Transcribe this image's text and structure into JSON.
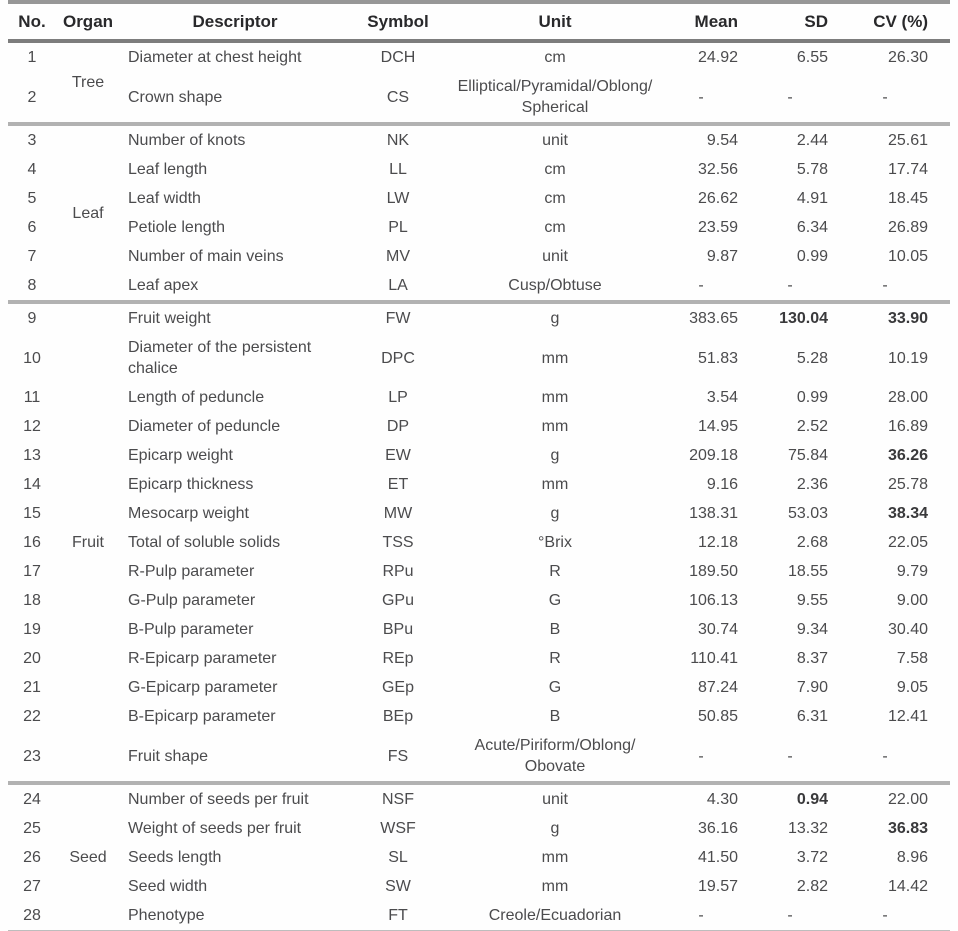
{
  "colors": {
    "rule_top": "#979797",
    "rule_header": "#7d7d7d",
    "rule_group": "#b2b2b2",
    "rule_bottom": "#bdbdbd",
    "text_header": "#29292b",
    "text_body": "#4b4b4d"
  },
  "table": {
    "columns": [
      {
        "key": "no",
        "label": "No."
      },
      {
        "key": "organ",
        "label": "Organ"
      },
      {
        "key": "descriptor",
        "label": "Descriptor"
      },
      {
        "key": "symbol",
        "label": "Symbol"
      },
      {
        "key": "unit",
        "label": "Unit"
      },
      {
        "key": "mean",
        "label": "Mean"
      },
      {
        "key": "sd",
        "label": "SD"
      },
      {
        "key": "cv",
        "label": "CV (%)"
      }
    ],
    "groups": [
      {
        "organ": "Tree",
        "rows": [
          {
            "no": "1",
            "descriptor": "Diameter at chest height",
            "symbol": "DCH",
            "unit": "cm",
            "mean": "24.92",
            "sd": "6.55",
            "cv": "26.30",
            "bold": []
          },
          {
            "no": "2",
            "descriptor": "Crown shape",
            "symbol": "CS",
            "unit": "Elliptical/Pyramidal/Oblong/\nSpherical",
            "mean": "-",
            "sd": "-",
            "cv": "-",
            "bold": []
          }
        ]
      },
      {
        "organ": "Leaf",
        "rows": [
          {
            "no": "3",
            "descriptor": "Number of knots",
            "symbol": "NK",
            "unit": "unit",
            "mean": "9.54",
            "sd": "2.44",
            "cv": "25.61",
            "bold": []
          },
          {
            "no": "4",
            "descriptor": "Leaf length",
            "symbol": "LL",
            "unit": "cm",
            "mean": "32.56",
            "sd": "5.78",
            "cv": "17.74",
            "bold": []
          },
          {
            "no": "5",
            "descriptor": "Leaf width",
            "symbol": "LW",
            "unit": "cm",
            "mean": "26.62",
            "sd": "4.91",
            "cv": "18.45",
            "bold": []
          },
          {
            "no": "6",
            "descriptor": "Petiole length",
            "symbol": "PL",
            "unit": "cm",
            "mean": "23.59",
            "sd": "6.34",
            "cv": "26.89",
            "bold": []
          },
          {
            "no": "7",
            "descriptor": "Number of main veins",
            "symbol": "MV",
            "unit": "unit",
            "mean": "9.87",
            "sd": "0.99",
            "cv": "10.05",
            "bold": []
          },
          {
            "no": "8",
            "descriptor": "Leaf apex",
            "symbol": "LA",
            "unit": "Cusp/Obtuse",
            "mean": "-",
            "sd": "-",
            "cv": "-",
            "bold": []
          }
        ]
      },
      {
        "organ": "Fruit",
        "rows": [
          {
            "no": "9",
            "descriptor": "Fruit weight",
            "symbol": "FW",
            "unit": "g",
            "mean": "383.65",
            "sd": "130.04",
            "cv": "33.90",
            "bold": [
              "sd",
              "cv"
            ]
          },
          {
            "no": "10",
            "descriptor": "Diameter of the persistent\nchalice",
            "symbol": "DPC",
            "unit": "mm",
            "mean": "51.83",
            "sd": "5.28",
            "cv": "10.19",
            "bold": []
          },
          {
            "no": "11",
            "descriptor": "Length of peduncle",
            "symbol": "LP",
            "unit": "mm",
            "mean": "3.54",
            "sd": "0.99",
            "cv": "28.00",
            "bold": []
          },
          {
            "no": "12",
            "descriptor": "Diameter of peduncle",
            "symbol": "DP",
            "unit": "mm",
            "mean": "14.95",
            "sd": "2.52",
            "cv": "16.89",
            "bold": []
          },
          {
            "no": "13",
            "descriptor": "Epicarp weight",
            "symbol": "EW",
            "unit": "g",
            "mean": "209.18",
            "sd": "75.84",
            "cv": "36.26",
            "bold": [
              "cv"
            ]
          },
          {
            "no": "14",
            "descriptor": "Epicarp thickness",
            "symbol": "ET",
            "unit": "mm",
            "mean": "9.16",
            "sd": "2.36",
            "cv": "25.78",
            "bold": []
          },
          {
            "no": "15",
            "descriptor": "Mesocarp weight",
            "symbol": "MW",
            "unit": "g",
            "mean": "138.31",
            "sd": "53.03",
            "cv": "38.34",
            "bold": [
              "cv"
            ]
          },
          {
            "no": "16",
            "descriptor": "Total of soluble solids",
            "symbol": "TSS",
            "unit": "°Brix",
            "mean": "12.18",
            "sd": "2.68",
            "cv": "22.05",
            "bold": []
          },
          {
            "no": "17",
            "descriptor": "R-Pulp parameter",
            "symbol": "RPu",
            "unit": "R",
            "mean": "189.50",
            "sd": "18.55",
            "cv": "9.79",
            "bold": []
          },
          {
            "no": "18",
            "descriptor": "G-Pulp parameter",
            "symbol": "GPu",
            "unit": "G",
            "mean": "106.13",
            "sd": "9.55",
            "cv": "9.00",
            "bold": []
          },
          {
            "no": "19",
            "descriptor": "B-Pulp parameter",
            "symbol": "BPu",
            "unit": "B",
            "mean": "30.74",
            "sd": "9.34",
            "cv": "30.40",
            "bold": []
          },
          {
            "no": "20",
            "descriptor": "R-Epicarp parameter",
            "symbol": "REp",
            "unit": "R",
            "mean": "110.41",
            "sd": "8.37",
            "cv": "7.58",
            "bold": []
          },
          {
            "no": "21",
            "descriptor": "G-Epicarp parameter",
            "symbol": "GEp",
            "unit": "G",
            "mean": "87.24",
            "sd": "7.90",
            "cv": "9.05",
            "bold": []
          },
          {
            "no": "22",
            "descriptor": "B-Epicarp parameter",
            "symbol": "BEp",
            "unit": "B",
            "mean": "50.85",
            "sd": "6.31",
            "cv": "12.41",
            "bold": []
          },
          {
            "no": "23",
            "descriptor": "Fruit shape",
            "symbol": "FS",
            "unit": "Acute/Piriform/Oblong/\nObovate",
            "mean": "-",
            "sd": "-",
            "cv": "-",
            "bold": []
          }
        ]
      },
      {
        "organ": "Seed",
        "rows": [
          {
            "no": "24",
            "descriptor": "Number of seeds per fruit",
            "symbol": "NSF",
            "unit": "unit",
            "mean": "4.30",
            "sd": "0.94",
            "cv": "22.00",
            "bold": [
              "sd"
            ]
          },
          {
            "no": "25",
            "descriptor": "Weight of seeds per fruit",
            "symbol": "WSF",
            "unit": "g",
            "mean": "36.16",
            "sd": "13.32",
            "cv": "36.83",
            "bold": [
              "cv"
            ]
          },
          {
            "no": "26",
            "descriptor": "Seeds length",
            "symbol": "SL",
            "unit": "mm",
            "mean": "41.50",
            "sd": "3.72",
            "cv": "8.96",
            "bold": []
          },
          {
            "no": "27",
            "descriptor": "Seed width",
            "symbol": "SW",
            "unit": "mm",
            "mean": "19.57",
            "sd": "2.82",
            "cv": "14.42",
            "bold": []
          },
          {
            "no": "28",
            "descriptor": "Phenotype",
            "symbol": "FT",
            "unit": "Creole/Ecuadorian",
            "mean": "-",
            "sd": "-",
            "cv": "-",
            "bold": []
          }
        ]
      }
    ]
  }
}
